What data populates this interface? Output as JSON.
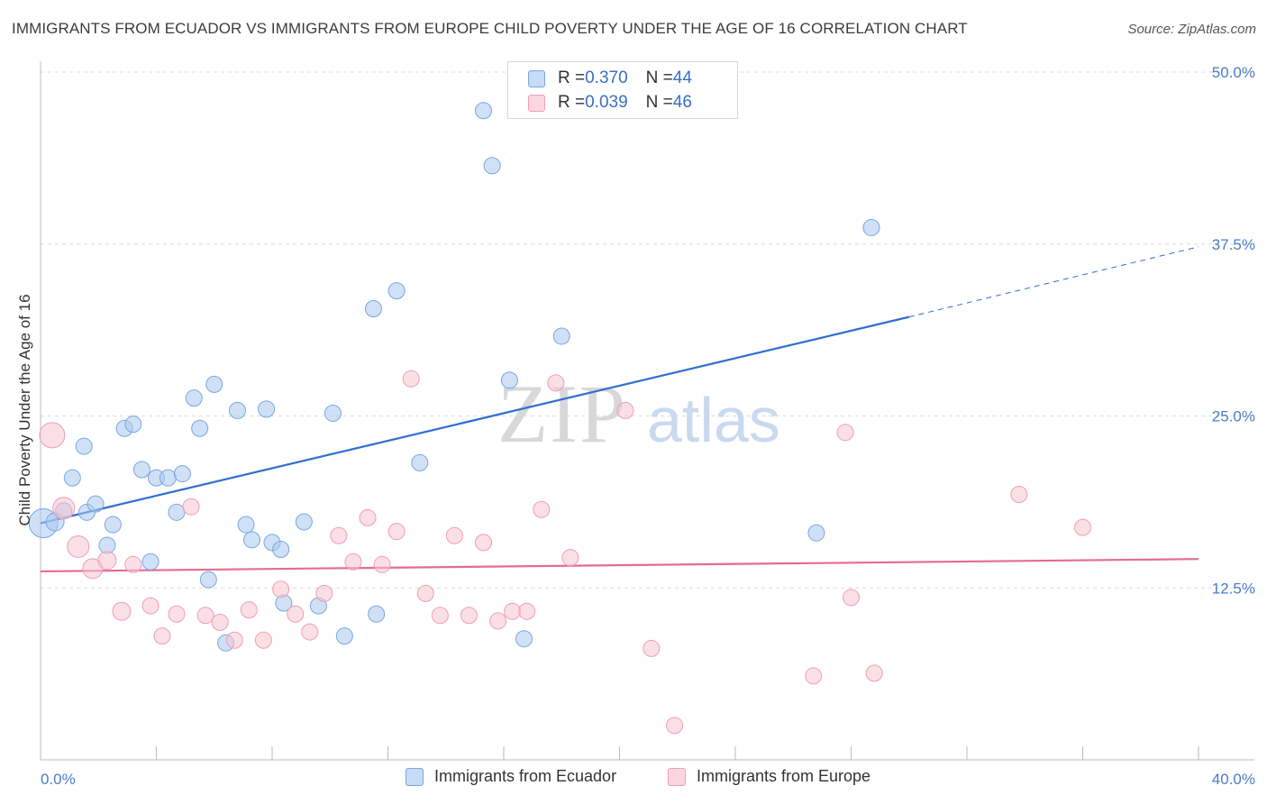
{
  "title": "IMMIGRANTS FROM ECUADOR VS IMMIGRANTS FROM EUROPE CHILD POVERTY UNDER THE AGE OF 16 CORRELATION CHART",
  "source": "Source: ZipAtlas.com",
  "watermark": {
    "zip": "ZIP",
    "atlas": "atlas"
  },
  "legend_stats": [
    {
      "r_label": "R = ",
      "r_value": "0.370",
      "n_label": "N = ",
      "n_value": "44",
      "color": "#a9c8f0",
      "border": "#7aa6e0"
    },
    {
      "r_label": "R = ",
      "r_value": "0.039",
      "n_label": "N = ",
      "n_value": "46",
      "color": "#f8c4d2",
      "border": "#ee9fb5"
    }
  ],
  "bottom_legend": [
    "Immigrants from Ecuador",
    "Immigrants from Europe"
  ],
  "chart_data": {
    "type": "scatter",
    "xlabel": "",
    "ylabel": "Child Poverty Under the Age of 16",
    "xlim": [
      0,
      40
    ],
    "ylim": [
      0,
      50
    ],
    "x_tick_labels": [
      "0.0%",
      "40.0%"
    ],
    "y_ticks": [
      12.5,
      25.0,
      37.5,
      50.0
    ],
    "y_tick_labels": [
      "12.5%",
      "25.0%",
      "37.5%",
      "50.0%"
    ],
    "grid": true,
    "series": [
      {
        "name": "Immigrants from Ecuador",
        "color": "#a9c8f0",
        "line_color": "#2f6fcf",
        "trend": {
          "x0": 0.0,
          "y0": 17.2,
          "x1": 30.0,
          "y1": 32.2,
          "dash_x1": 40.0,
          "dash_y1": 37.3
        },
        "points": [
          [
            0.1,
            17.2,
            16
          ],
          [
            0.5,
            17.3,
            10
          ],
          [
            0.8,
            18.1,
            9
          ],
          [
            1.1,
            20.5,
            9
          ],
          [
            1.5,
            22.8,
            9
          ],
          [
            1.6,
            18.0,
            9
          ],
          [
            1.9,
            18.6,
            9
          ],
          [
            2.3,
            15.6,
            9
          ],
          [
            2.5,
            17.1,
            9
          ],
          [
            2.9,
            24.1,
            9
          ],
          [
            3.2,
            24.4,
            9
          ],
          [
            3.5,
            21.1,
            9
          ],
          [
            3.8,
            14.4,
            9
          ],
          [
            4.0,
            20.5,
            9
          ],
          [
            4.4,
            20.5,
            9
          ],
          [
            4.7,
            18.0,
            9
          ],
          [
            4.9,
            20.8,
            9
          ],
          [
            5.3,
            26.3,
            9
          ],
          [
            5.5,
            24.1,
            9
          ],
          [
            5.8,
            13.1,
            9
          ],
          [
            6.0,
            27.3,
            9
          ],
          [
            6.4,
            8.5,
            9
          ],
          [
            6.8,
            25.4,
            9
          ],
          [
            7.1,
            17.1,
            9
          ],
          [
            7.3,
            16.0,
            9
          ],
          [
            7.8,
            25.5,
            9
          ],
          [
            8.0,
            15.8,
            9
          ],
          [
            8.3,
            15.3,
            9
          ],
          [
            8.4,
            11.4,
            9
          ],
          [
            9.1,
            17.3,
            9
          ],
          [
            9.6,
            11.2,
            9
          ],
          [
            10.1,
            25.2,
            9
          ],
          [
            10.5,
            9.0,
            9
          ],
          [
            11.5,
            32.8,
            9
          ],
          [
            11.6,
            10.6,
            9
          ],
          [
            12.3,
            34.1,
            9
          ],
          [
            13.1,
            21.6,
            9
          ],
          [
            15.3,
            47.2,
            9
          ],
          [
            15.6,
            43.2,
            9
          ],
          [
            16.2,
            27.6,
            9
          ],
          [
            16.7,
            8.8,
            9
          ],
          [
            18.0,
            30.8,
            9
          ],
          [
            26.8,
            16.5,
            9
          ],
          [
            28.7,
            38.7,
            9
          ]
        ]
      },
      {
        "name": "Immigrants from Europe",
        "color": "#f8c4d2",
        "line_color": "#e46b96",
        "trend": {
          "x0": 0.0,
          "y0": 13.7,
          "x1": 40.0,
          "y1": 14.6
        },
        "points": [
          [
            0.4,
            23.6,
            14
          ],
          [
            0.8,
            18.3,
            12
          ],
          [
            1.3,
            15.5,
            12
          ],
          [
            1.8,
            13.9,
            11
          ],
          [
            2.3,
            14.5,
            10
          ],
          [
            2.8,
            10.8,
            10
          ],
          [
            3.2,
            14.2,
            9
          ],
          [
            3.8,
            11.2,
            9
          ],
          [
            4.2,
            9.0,
            9
          ],
          [
            4.7,
            10.6,
            9
          ],
          [
            5.2,
            18.4,
            9
          ],
          [
            5.7,
            10.5,
            9
          ],
          [
            6.2,
            10.0,
            9
          ],
          [
            6.7,
            8.7,
            9
          ],
          [
            7.2,
            10.9,
            9
          ],
          [
            7.7,
            8.7,
            9
          ],
          [
            8.3,
            12.4,
            9
          ],
          [
            8.8,
            10.6,
            9
          ],
          [
            9.3,
            9.3,
            9
          ],
          [
            9.8,
            12.1,
            9
          ],
          [
            10.3,
            16.3,
            9
          ],
          [
            10.8,
            14.4,
            9
          ],
          [
            11.3,
            17.6,
            9
          ],
          [
            11.8,
            14.2,
            9
          ],
          [
            12.3,
            16.6,
            9
          ],
          [
            12.8,
            27.7,
            9
          ],
          [
            13.3,
            12.1,
            9
          ],
          [
            13.8,
            10.5,
            9
          ],
          [
            14.3,
            16.3,
            9
          ],
          [
            14.8,
            10.5,
            9
          ],
          [
            15.3,
            15.8,
            9
          ],
          [
            15.8,
            10.1,
            9
          ],
          [
            16.3,
            10.8,
            9
          ],
          [
            16.8,
            10.8,
            9
          ],
          [
            17.3,
            18.2,
            9
          ],
          [
            17.8,
            27.4,
            9
          ],
          [
            18.3,
            14.7,
            9
          ],
          [
            20.2,
            25.4,
            9
          ],
          [
            21.1,
            8.1,
            9
          ],
          [
            21.9,
            2.5,
            9
          ],
          [
            26.7,
            6.1,
            9
          ],
          [
            27.8,
            23.8,
            9
          ],
          [
            28.0,
            11.8,
            9
          ],
          [
            28.8,
            6.3,
            9
          ],
          [
            33.8,
            19.3,
            9
          ],
          [
            36.0,
            16.9,
            9
          ]
        ]
      }
    ]
  }
}
